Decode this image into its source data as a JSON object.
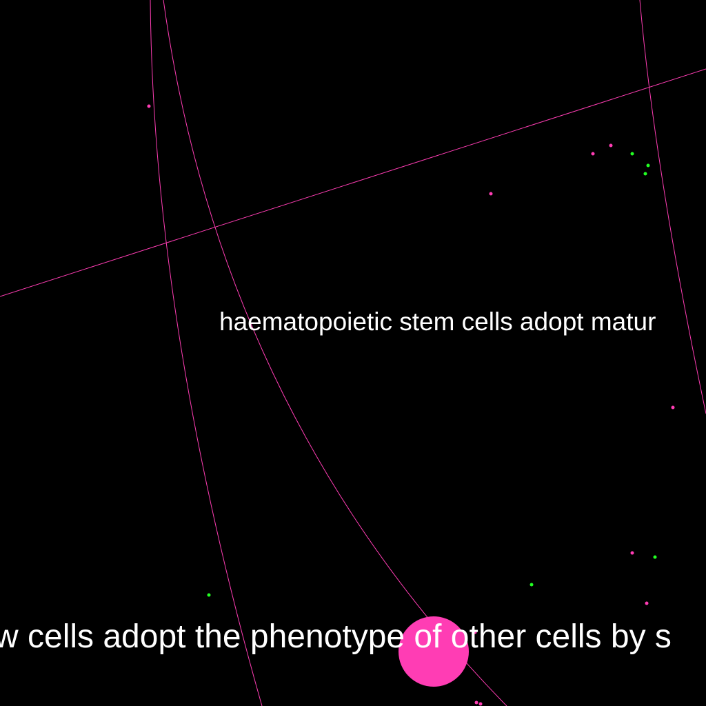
{
  "colors": {
    "background": "#000000",
    "edge": "#ff3db4",
    "node_pink": "#ff3db4",
    "node_green": "#22ff22",
    "label": "#ffffff"
  },
  "labels": {
    "upper": "haematopoietic stem cells adopt matur",
    "lower": "w cells adopt the phenotype of other cells by s"
  },
  "node_colors_legend": [
    "pink",
    "green"
  ]
}
